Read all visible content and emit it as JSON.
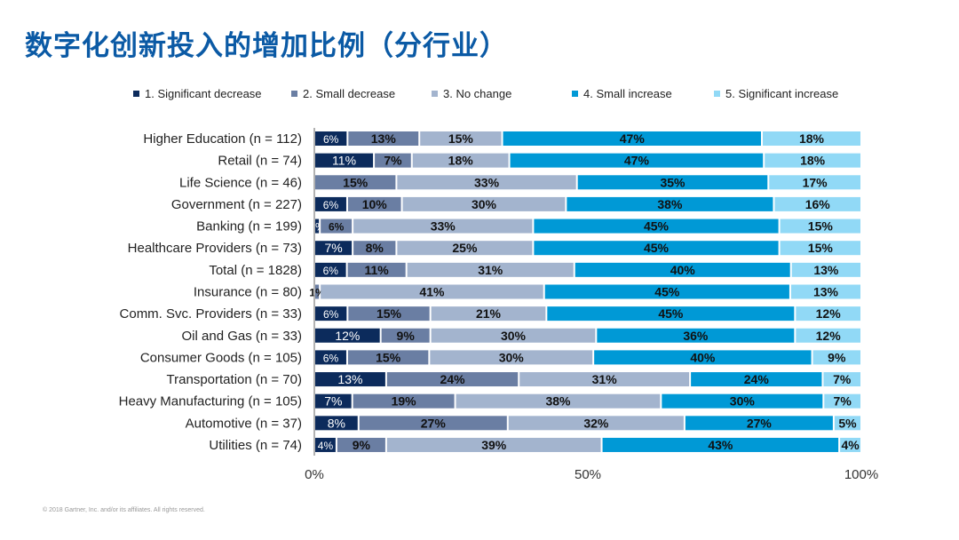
{
  "title": "数字化创新投入的增加比例（分行业）",
  "footer": "© 2018 Gartner, Inc. and/or its affiliates. All rights reserved.",
  "chart_data": {
    "type": "bar",
    "orientation": "horizontal-stacked-100",
    "title": "数字化创新投入的增加比例（分行业）",
    "legend_position": "top",
    "grid": false,
    "xlim": [
      0,
      100
    ],
    "x_ticks": [
      "0%",
      "50%",
      "100%"
    ],
    "categories": [
      "Higher Education (n = 112)",
      "Retail (n = 74)",
      "Life Science (n = 46)",
      "Government (n = 227)",
      "Banking (n = 199)",
      "Healthcare Providers (n = 73)",
      "Total (n = 1828)",
      "Insurance (n = 80)",
      "Comm. Svc. Providers (n = 33)",
      "Oil and Gas (n = 33)",
      "Consumer Goods (n = 105)",
      "Transportation (n = 70)",
      "Heavy Manufacturing (n = 105)",
      "Automotive (n = 37)",
      "Utilities (n = 74)"
    ],
    "series": [
      {
        "name": "1. Significant decrease",
        "color": "#0c2b5c",
        "values": [
          6,
          11,
          0,
          6,
          1,
          7,
          6,
          0,
          6,
          12,
          6,
          13,
          7,
          8,
          4
        ]
      },
      {
        "name": "2. Small decrease",
        "color": "#6a7ea3",
        "values": [
          13,
          7,
          15,
          10,
          6,
          8,
          11,
          1,
          15,
          9,
          15,
          24,
          19,
          27,
          9
        ]
      },
      {
        "name": "3. No change",
        "color": "#a3b4ce",
        "values": [
          15,
          18,
          33,
          30,
          33,
          25,
          31,
          41,
          21,
          30,
          30,
          31,
          38,
          32,
          39
        ]
      },
      {
        "name": "4. Small increase",
        "color": "#0099d6",
        "values": [
          47,
          47,
          35,
          38,
          45,
          45,
          40,
          45,
          45,
          36,
          40,
          24,
          30,
          27,
          43
        ]
      },
      {
        "name": "5. Significant increase",
        "color": "#91d9f6",
        "values": [
          18,
          18,
          17,
          16,
          15,
          15,
          13,
          13,
          12,
          12,
          9,
          7,
          7,
          5,
          4
        ]
      }
    ]
  }
}
